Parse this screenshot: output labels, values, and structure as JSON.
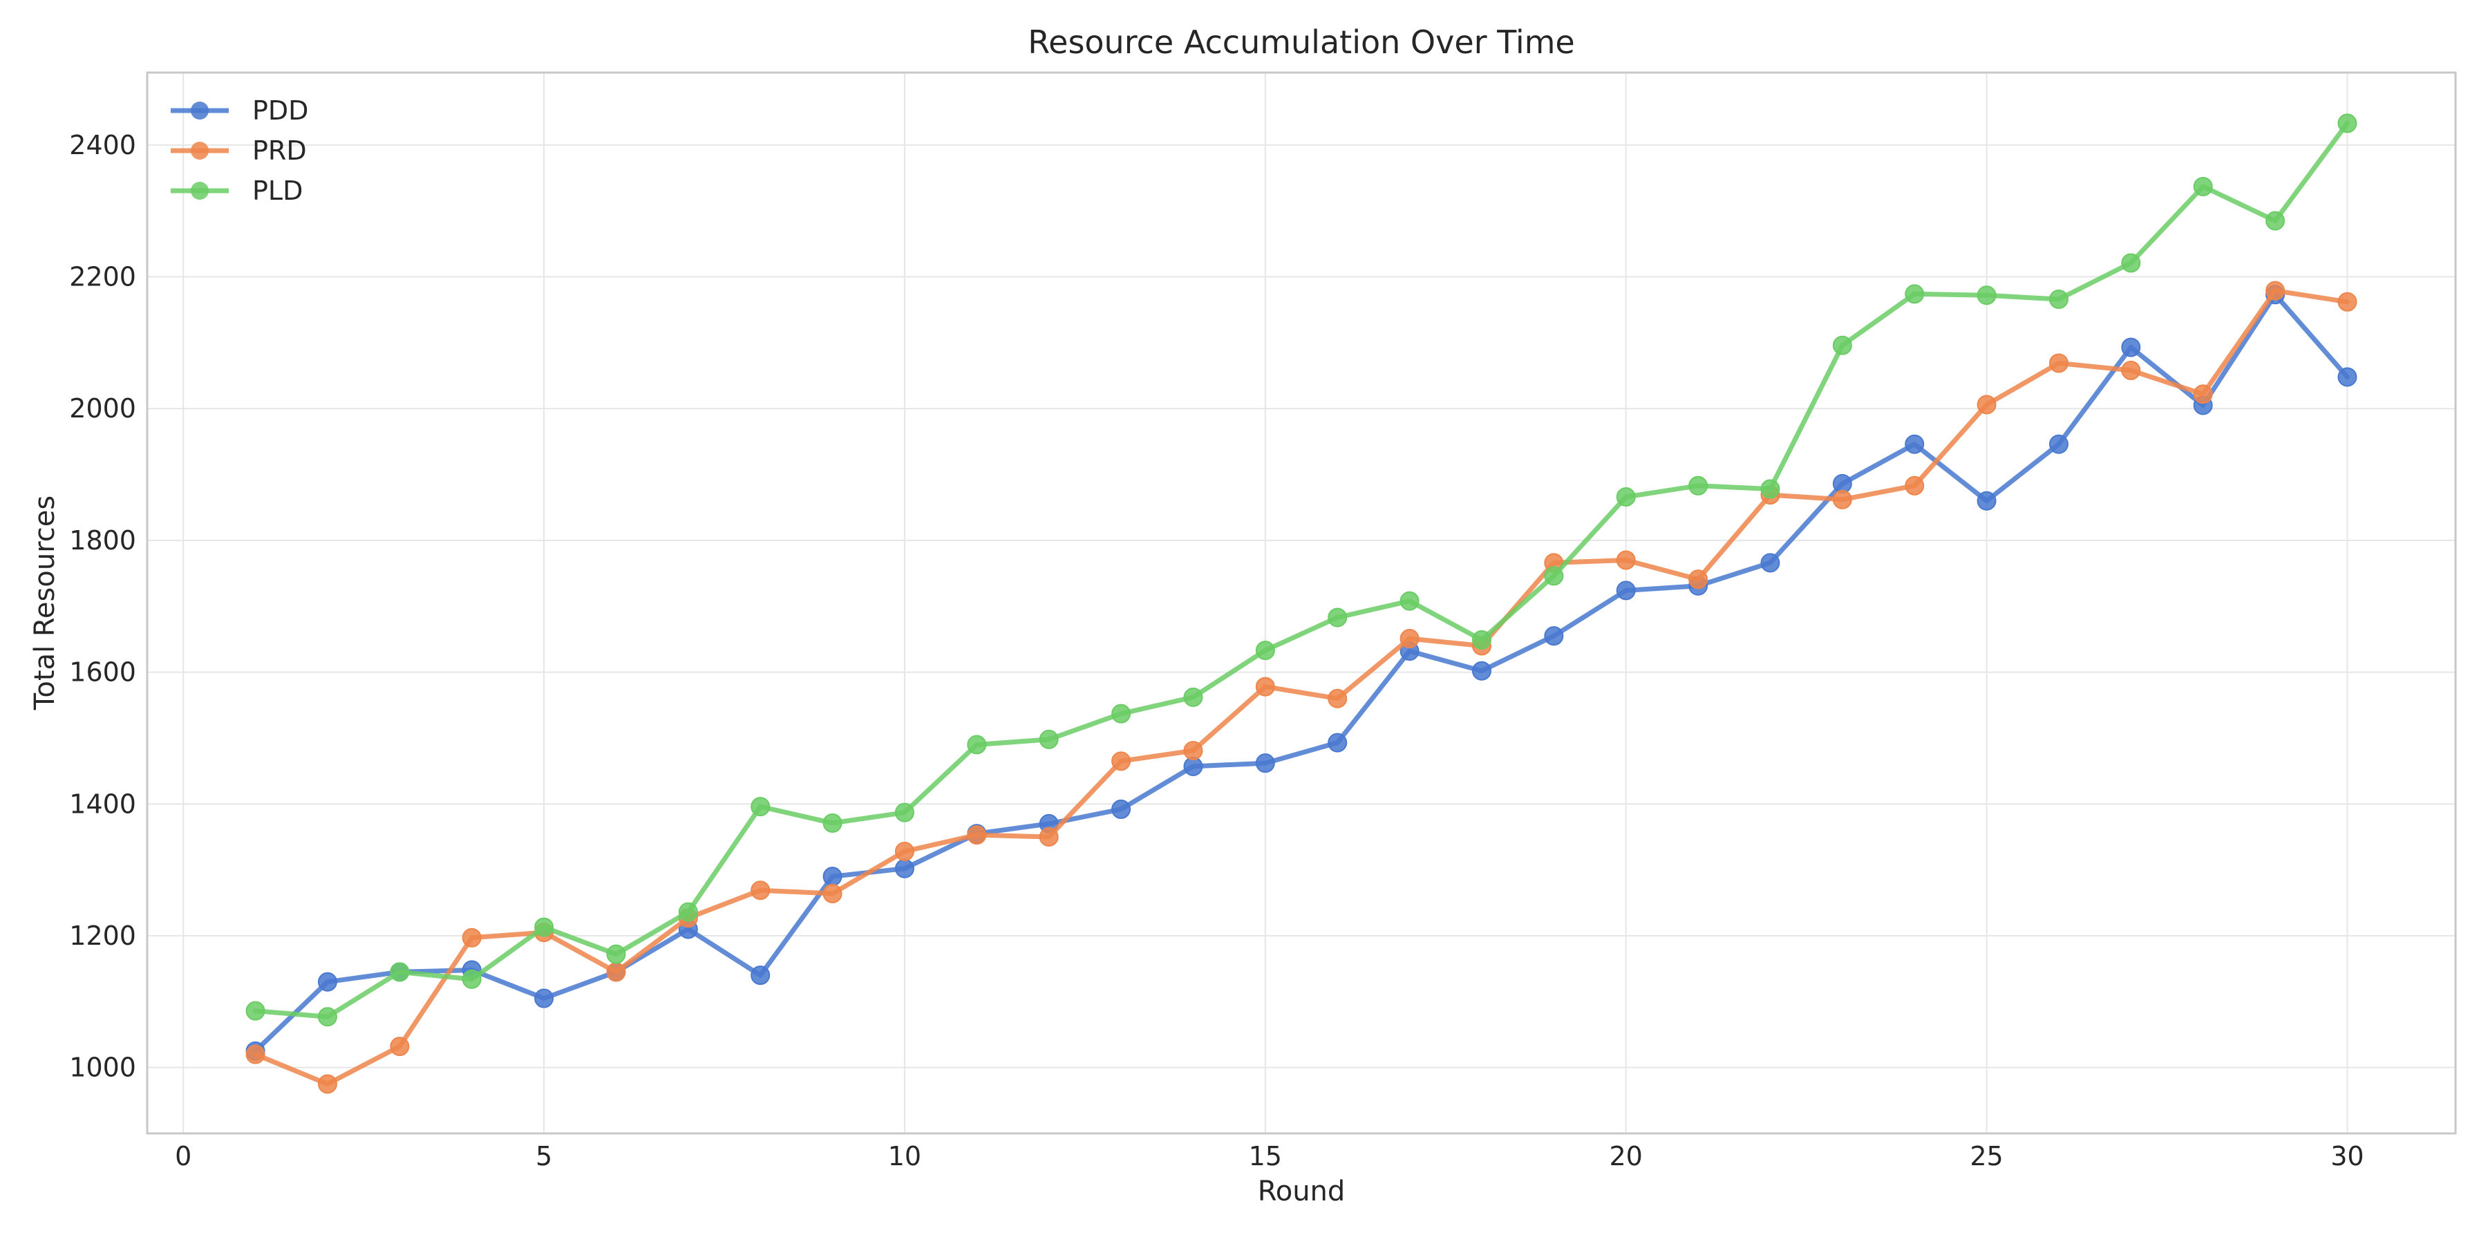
{
  "chart_data": {
    "type": "line",
    "title": "Resource Accumulation Over Time",
    "xlabel": "Round",
    "ylabel": "Total Resources",
    "xlim": [
      -0.5,
      31.5
    ],
    "ylim": [
      900,
      2510
    ],
    "xticks": [
      0,
      5,
      10,
      15,
      20,
      25,
      30
    ],
    "yticks": [
      1000,
      1200,
      1400,
      1600,
      1800,
      2000,
      2200,
      2400
    ],
    "grid": true,
    "legend_position": "top-left",
    "x": [
      1,
      2,
      3,
      4,
      5,
      6,
      7,
      8,
      9,
      10,
      11,
      12,
      13,
      14,
      15,
      16,
      17,
      18,
      19,
      20,
      21,
      22,
      23,
      24,
      25,
      26,
      27,
      28,
      29,
      30
    ],
    "series": [
      {
        "name": "PDD",
        "color": "#4878d0",
        "values": [
          1025,
          1130,
          1145,
          1148,
          1105,
          1145,
          1210,
          1140,
          1290,
          1302,
          1355,
          1370,
          1392,
          1457,
          1462,
          1493,
          1632,
          1602,
          1655,
          1724,
          1731,
          1766,
          1886,
          1946,
          1860,
          1946,
          2093,
          2005,
          2173,
          2048
        ]
      },
      {
        "name": "PRD",
        "color": "#ee854a",
        "values": [
          1020,
          975,
          1032,
          1197,
          1205,
          1145,
          1227,
          1269,
          1264,
          1328,
          1353,
          1350,
          1465,
          1481,
          1578,
          1560,
          1651,
          1640,
          1766,
          1770,
          1741,
          1869,
          1862,
          1883,
          2006,
          2069,
          2058,
          2022,
          2179,
          2162
        ]
      },
      {
        "name": "PLD",
        "color": "#6acc64",
        "values": [
          1086,
          1077,
          1145,
          1134,
          1213,
          1172,
          1236,
          1396,
          1371,
          1387,
          1490,
          1498,
          1537,
          1562,
          1633,
          1683,
          1708,
          1649,
          1746,
          1866,
          1883,
          1878,
          2096,
          2174,
          2172,
          2166,
          2221,
          2337,
          2285,
          2433
        ]
      }
    ]
  }
}
